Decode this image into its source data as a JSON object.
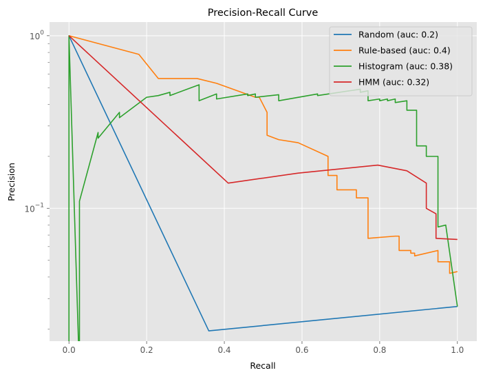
{
  "chart_data": {
    "type": "line",
    "title": "Precision-Recall Curve",
    "xlabel": "Recall",
    "ylabel": "Precision",
    "xlim": [
      -0.05,
      1.05
    ],
    "ylim": [
      0.017,
      1.2
    ],
    "yscale": "log",
    "grid": true,
    "legend_position": "top-right",
    "x_ticks": [
      0.0,
      0.2,
      0.4,
      0.6,
      0.8,
      1.0
    ],
    "x_tick_labels": [
      "0.0",
      "0.2",
      "0.4",
      "0.6",
      "0.8",
      "1.0"
    ],
    "y_ticks_major": [
      {
        "value": 1,
        "base": "10",
        "exp": "0"
      },
      {
        "value": 0.1,
        "base": "10",
        "exp": "−1"
      }
    ],
    "y_ticks_minor": [
      0.02,
      0.03,
      0.04,
      0.05,
      0.06,
      0.07,
      0.08,
      0.09,
      0.2,
      0.3,
      0.4,
      0.5,
      0.6,
      0.7,
      0.8,
      0.9
    ],
    "series": [
      {
        "name": "Random (auc: 0.2)",
        "color": "#1f77b4",
        "x": [
          0.0,
          0.36,
          1.0
        ],
        "y": [
          1.0,
          0.0195,
          0.027
        ]
      },
      {
        "name": "Rule-based (auc: 0.4)",
        "color": "#ff7f0e",
        "x": [
          0.0,
          0.18,
          0.23,
          0.33,
          0.38,
          0.48,
          0.49,
          0.51,
          0.51,
          0.54,
          0.59,
          0.667,
          0.667,
          0.69,
          0.69,
          0.74,
          0.74,
          0.77,
          0.77,
          0.84,
          0.85,
          0.85,
          0.88,
          0.88,
          0.89,
          0.89,
          0.95,
          0.95,
          0.98,
          0.98,
          1.0
        ],
        "y": [
          1.0,
          0.78,
          0.565,
          0.565,
          0.53,
          0.44,
          0.44,
          0.36,
          0.265,
          0.25,
          0.24,
          0.2,
          0.155,
          0.155,
          0.128,
          0.128,
          0.115,
          0.115,
          0.067,
          0.069,
          0.069,
          0.057,
          0.057,
          0.055,
          0.055,
          0.053,
          0.057,
          0.049,
          0.049,
          0.042,
          0.043
        ]
      },
      {
        "name": "Histogram (auc: 0.38)",
        "color": "#2ca02c",
        "x": [
          0.0,
          0.0,
          0.0,
          0.027,
          0.027,
          0.027,
          0.075,
          0.075,
          0.13,
          0.13,
          0.2,
          0.23,
          0.26,
          0.26,
          0.335,
          0.335,
          0.38,
          0.38,
          0.46,
          0.46,
          0.48,
          0.48,
          0.54,
          0.54,
          0.64,
          0.64,
          0.75,
          0.75,
          0.77,
          0.77,
          0.8,
          0.8,
          0.82,
          0.82,
          0.84,
          0.84,
          0.87,
          0.87,
          0.895,
          0.895,
          0.92,
          0.92,
          0.95,
          0.95,
          0.97,
          1.0
        ],
        "y": [
          0.009,
          1.0,
          1.0,
          0.011,
          0.011,
          0.11,
          0.275,
          0.255,
          0.36,
          0.335,
          0.44,
          0.45,
          0.47,
          0.45,
          0.52,
          0.42,
          0.46,
          0.43,
          0.46,
          0.45,
          0.46,
          0.44,
          0.455,
          0.42,
          0.46,
          0.45,
          0.49,
          0.47,
          0.48,
          0.42,
          0.43,
          0.42,
          0.43,
          0.42,
          0.43,
          0.41,
          0.42,
          0.37,
          0.37,
          0.23,
          0.23,
          0.2,
          0.2,
          0.078,
          0.08,
          0.027
        ]
      },
      {
        "name": "HMM (auc: 0.32)",
        "color": "#d62728",
        "x": [
          0.0,
          0.41,
          0.59,
          0.795,
          0.87,
          0.92,
          0.92,
          0.945,
          0.945,
          1.0
        ],
        "y": [
          1.0,
          0.14,
          0.16,
          0.178,
          0.165,
          0.14,
          0.1,
          0.093,
          0.067,
          0.066
        ]
      }
    ]
  }
}
